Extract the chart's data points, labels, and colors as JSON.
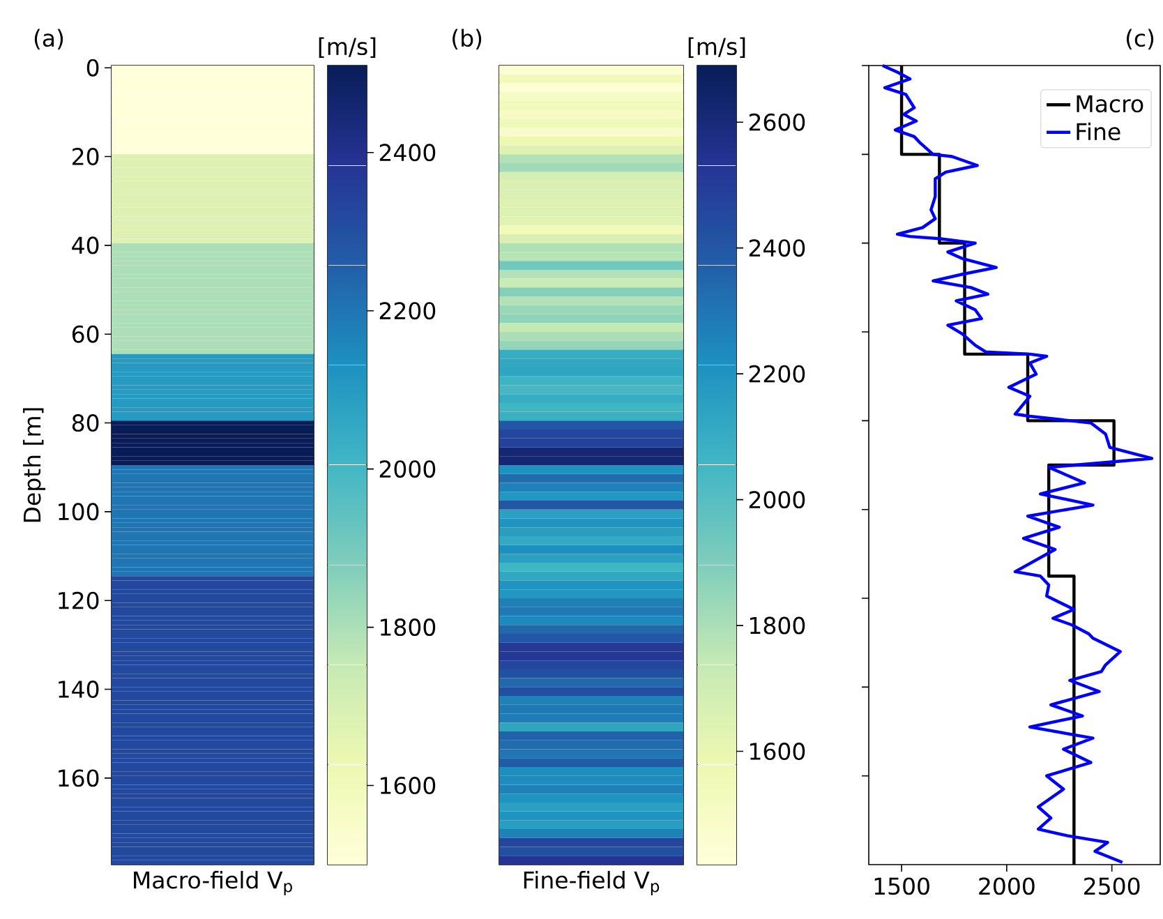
{
  "chart_data": [
    {
      "type": "heatmap",
      "title": "(a)",
      "xlabel": "Macro-field V$_{p}$",
      "ylabel": "Depth [m]",
      "clabel": "[m/s]",
      "categories": [
        null
      ],
      "y_categories": [
        "0",
        null,
        null,
        null,
        null,
        null,
        null,
        null,
        null,
        null,
        null,
        null,
        null,
        null,
        null,
        null,
        null,
        null,
        null,
        null,
        "20",
        null,
        null,
        null,
        null,
        null,
        null,
        null,
        null,
        null,
        null,
        null,
        null,
        null,
        null,
        null,
        null,
        null,
        null,
        null,
        "40",
        null,
        null,
        null,
        null,
        null,
        null,
        null,
        null,
        null,
        null,
        null,
        null,
        null,
        null,
        null,
        null,
        null,
        null,
        null,
        "60",
        null,
        null,
        null,
        null,
        null,
        null,
        null,
        null,
        null,
        null,
        null,
        null,
        null,
        null,
        null,
        null,
        null,
        null,
        null,
        "80",
        null,
        null,
        null,
        null,
        null,
        null,
        null,
        null,
        null,
        null,
        null,
        null,
        null,
        null,
        null,
        null,
        null,
        null,
        null,
        "100",
        null,
        null,
        null,
        null,
        null,
        null,
        null,
        null,
        null,
        null,
        null,
        null,
        null,
        null,
        null,
        null,
        null,
        null,
        null,
        "120",
        null,
        null,
        null,
        null,
        null,
        null,
        null,
        null,
        null,
        null,
        null,
        null,
        null,
        null,
        null,
        null,
        null,
        null,
        null,
        "140",
        null,
        null,
        null,
        null,
        null,
        null,
        null,
        null,
        null,
        null,
        null,
        null,
        null,
        null,
        null,
        null,
        null,
        null,
        null,
        "160",
        null,
        null,
        null,
        null,
        null,
        null,
        null,
        null,
        null,
        null,
        null,
        null,
        null,
        null,
        null,
        null,
        null,
        null,
        null
      ],
      "cells": [
        [
          1500
        ],
        [
          1500
        ],
        [
          1500
        ],
        [
          1500
        ],
        [
          1500
        ],
        [
          1500
        ],
        [
          1500
        ],
        [
          1500
        ],
        [
          1500
        ],
        [
          1500
        ],
        [
          1500
        ],
        [
          1500
        ],
        [
          1500
        ],
        [
          1500
        ],
        [
          1500
        ],
        [
          1500
        ],
        [
          1500
        ],
        [
          1500
        ],
        [
          1500
        ],
        [
          1500
        ],
        [
          1680
        ],
        [
          1680
        ],
        [
          1680
        ],
        [
          1680
        ],
        [
          1680
        ],
        [
          1680
        ],
        [
          1680
        ],
        [
          1680
        ],
        [
          1680
        ],
        [
          1680
        ],
        [
          1680
        ],
        [
          1680
        ],
        [
          1680
        ],
        [
          1680
        ],
        [
          1680
        ],
        [
          1680
        ],
        [
          1680
        ],
        [
          1680
        ],
        [
          1680
        ],
        [
          1680
        ],
        [
          1800
        ],
        [
          1800
        ],
        [
          1800
        ],
        [
          1800
        ],
        [
          1800
        ],
        [
          1800
        ],
        [
          1800
        ],
        [
          1800
        ],
        [
          1800
        ],
        [
          1800
        ],
        [
          1800
        ],
        [
          1800
        ],
        [
          1800
        ],
        [
          1800
        ],
        [
          1800
        ],
        [
          1800
        ],
        [
          1800
        ],
        [
          1800
        ],
        [
          1800
        ],
        [
          1800
        ],
        [
          1800
        ],
        [
          1800
        ],
        [
          1800
        ],
        [
          1800
        ],
        [
          1800
        ],
        [
          2100
        ],
        [
          2100
        ],
        [
          2100
        ],
        [
          2100
        ],
        [
          2100
        ],
        [
          2100
        ],
        [
          2100
        ],
        [
          2100
        ],
        [
          2100
        ],
        [
          2100
        ],
        [
          2100
        ],
        [
          2100
        ],
        [
          2100
        ],
        [
          2100
        ],
        [
          2100
        ],
        [
          2510
        ],
        [
          2510
        ],
        [
          2510
        ],
        [
          2510
        ],
        [
          2510
        ],
        [
          2510
        ],
        [
          2510
        ],
        [
          2510
        ],
        [
          2510
        ],
        [
          2510
        ],
        [
          2200
        ],
        [
          2200
        ],
        [
          2200
        ],
        [
          2200
        ],
        [
          2200
        ],
        [
          2200
        ],
        [
          2200
        ],
        [
          2200
        ],
        [
          2200
        ],
        [
          2200
        ],
        [
          2200
        ],
        [
          2200
        ],
        [
          2200
        ],
        [
          2200
        ],
        [
          2200
        ],
        [
          2200
        ],
        [
          2200
        ],
        [
          2200
        ],
        [
          2200
        ],
        [
          2200
        ],
        [
          2200
        ],
        [
          2200
        ],
        [
          2200
        ],
        [
          2200
        ],
        [
          2200
        ],
        [
          2320
        ],
        [
          2320
        ],
        [
          2320
        ],
        [
          2320
        ],
        [
          2320
        ],
        [
          2320
        ],
        [
          2320
        ],
        [
          2320
        ],
        [
          2320
        ],
        [
          2320
        ],
        [
          2320
        ],
        [
          2320
        ],
        [
          2320
        ],
        [
          2320
        ],
        [
          2320
        ],
        [
          2320
        ],
        [
          2320
        ],
        [
          2320
        ],
        [
          2320
        ],
        [
          2320
        ],
        [
          2320
        ],
        [
          2320
        ],
        [
          2320
        ],
        [
          2320
        ],
        [
          2320
        ],
        [
          2320
        ],
        [
          2320
        ],
        [
          2320
        ],
        [
          2320
        ],
        [
          2320
        ],
        [
          2320
        ],
        [
          2320
        ],
        [
          2320
        ],
        [
          2320
        ],
        [
          2320
        ],
        [
          2320
        ],
        [
          2320
        ],
        [
          2320
        ],
        [
          2320
        ],
        [
          2320
        ],
        [
          2320
        ],
        [
          2320
        ],
        [
          2320
        ],
        [
          2320
        ],
        [
          2320
        ],
        [
          2320
        ],
        [
          2320
        ],
        [
          2320
        ],
        [
          2320
        ],
        [
          2320
        ],
        [
          2320
        ],
        [
          2320
        ],
        [
          2320
        ],
        [
          2320
        ],
        [
          2320
        ],
        [
          2320
        ],
        [
          2320
        ],
        [
          2320
        ],
        [
          2320
        ],
        [
          2320
        ],
        [
          2320
        ],
        [
          2320
        ],
        [
          2320
        ],
        [
          2320
        ],
        [
          2320
        ]
      ],
      "clim": [
        1500,
        2510
      ],
      "cticks": [
        1600,
        1800,
        2000,
        2200,
        2400
      ]
    },
    {
      "type": "heatmap",
      "title": "(b)",
      "xlabel": "Fine-field V$_{p}$",
      "clabel": "[m/s]",
      "categories": [
        null
      ],
      "y_categories": [
        null,
        null,
        null,
        null,
        null,
        null,
        null,
        null,
        null,
        null,
        null,
        null,
        null,
        null,
        null,
        null,
        null,
        null,
        null,
        null,
        null,
        null,
        null,
        null,
        null,
        null,
        null,
        null,
        null,
        null,
        null,
        null,
        null,
        null,
        null,
        null,
        null,
        null,
        null,
        null,
        null,
        null,
        null,
        null,
        null,
        null,
        null,
        null,
        null,
        null,
        null,
        null,
        null,
        null,
        null,
        null,
        null,
        null,
        null,
        null,
        null,
        null,
        null,
        null,
        null,
        null,
        null,
        null,
        null,
        null,
        null,
        null,
        null,
        null,
        null,
        null,
        null,
        null,
        null,
        null,
        null,
        null,
        null,
        null,
        null,
        null,
        null,
        null,
        null,
        null
      ],
      "cells": [
        [
          1450
        ],
        [
          1540
        ],
        [
          1440
        ],
        [
          1510
        ],
        [
          1540
        ],
        [
          1510
        ],
        [
          1550
        ],
        [
          1480
        ],
        [
          1580
        ],
        [
          1640
        ],
        [
          1780
        ],
        [
          1820
        ],
        [
          1680
        ],
        [
          1660
        ],
        [
          1660
        ],
        [
          1650
        ],
        [
          1650
        ],
        [
          1630
        ],
        [
          1540
        ],
        [
          1660
        ],
        [
          1790
        ],
        [
          1770
        ],
        [
          1930
        ],
        [
          1780
        ],
        [
          1720
        ],
        [
          1880
        ],
        [
          1780
        ],
        [
          1840
        ],
        [
          1860
        ],
        [
          1740
        ],
        [
          1800
        ],
        [
          1850
        ],
        [
          2100
        ],
        [
          2120
        ],
        [
          2130
        ],
        [
          2070
        ],
        [
          2040
        ],
        [
          2100
        ],
        [
          2060
        ],
        [
          2080
        ],
        [
          2400
        ],
        [
          2460
        ],
        [
          2480
        ],
        [
          2620
        ],
        [
          2620
        ],
        [
          2210
        ],
        [
          2330
        ],
        [
          2260
        ],
        [
          2190
        ],
        [
          2400
        ],
        [
          2150
        ],
        [
          2200
        ],
        [
          2160
        ],
        [
          2110
        ],
        [
          2220
        ],
        [
          2150
        ],
        [
          2060
        ],
        [
          2120
        ],
        [
          2200
        ],
        [
          2190
        ],
        [
          2270
        ],
        [
          2290
        ],
        [
          2240
        ],
        [
          2340
        ],
        [
          2400
        ],
        [
          2510
        ],
        [
          2520
        ],
        [
          2460
        ],
        [
          2420
        ],
        [
          2340
        ],
        [
          2430
        ],
        [
          2260
        ],
        [
          2290
        ],
        [
          2280
        ],
        [
          2130
        ],
        [
          2360
        ],
        [
          2330
        ],
        [
          2300
        ],
        [
          2380
        ],
        [
          2220
        ],
        [
          2230
        ],
        [
          2260
        ],
        [
          2200
        ],
        [
          2150
        ],
        [
          2200
        ],
        [
          2160
        ],
        [
          2260
        ],
        [
          2460
        ],
        [
          2430
        ],
        [
          2530
        ]
      ],
      "clim": [
        1420,
        2690
      ],
      "cticks": [
        1600,
        1800,
        2000,
        2200,
        2400,
        2600
      ]
    },
    {
      "type": "line",
      "title": "(c)",
      "legend": "top right",
      "xlim": [
        1344,
        2730
      ],
      "xticks": [
        1500,
        2000,
        2500
      ],
      "ylim": [
        180,
        0
      ],
      "yticks": [
        0,
        20,
        40,
        60,
        80,
        100,
        120,
        140,
        160
      ],
      "tick_labels": "x",
      "series": [
        {
          "name": "Macro",
          "color": "#000000",
          "x": [
            1500,
            1500,
            1680,
            1680,
            1800,
            1800,
            2100,
            2100,
            2510,
            2510,
            2200,
            2200,
            2320,
            2320
          ],
          "values": [
            0,
            20,
            20,
            40,
            40,
            65,
            65,
            80,
            80,
            90,
            90,
            115,
            115,
            180
          ]
        },
        {
          "name": "Fine",
          "color": "#0000ff",
          "x": [
            1410,
            1480,
            1540,
            1420,
            1520,
            1560,
            1510,
            1570,
            1470,
            1560,
            1590,
            1650,
            1740,
            1860,
            1710,
            1660,
            1660,
            1640,
            1660,
            1600,
            1480,
            1540,
            1680,
            1850,
            1720,
            1790,
            1950,
            1790,
            1650,
            1830,
            1910,
            1760,
            1850,
            1880,
            1720,
            1790,
            1850,
            1900,
            2110,
            2190,
            2110,
            2140,
            2010,
            2110,
            2040,
            2110,
            2400,
            2470,
            2490,
            2690,
            2200,
            2370,
            2160,
            2410,
            2100,
            2250,
            2080,
            2230,
            2040,
            2160,
            2200,
            2190,
            2320,
            2220,
            2310,
            2390,
            2410,
            2540,
            2470,
            2450,
            2300,
            2440,
            2210,
            2360,
            2110,
            2410,
            2270,
            2400,
            2190,
            2270,
            2150,
            2210,
            2150,
            2290,
            2480,
            2420,
            2550
          ],
          "values": [
            0,
            1.5,
            3,
            5,
            6.5,
            9.5,
            11,
            12.5,
            14.5,
            16,
            17.5,
            20,
            20.5,
            22.5,
            24,
            25.5,
            29.5,
            32.5,
            34.5,
            36.5,
            38,
            38.5,
            39,
            40,
            42,
            43.5,
            45.5,
            47,
            48.5,
            50,
            51.5,
            53,
            55,
            57,
            58.5,
            60.5,
            63,
            64.5,
            65,
            65.5,
            67,
            69.5,
            72.5,
            74.5,
            78.5,
            79,
            80.5,
            83,
            86,
            88.5,
            90.5,
            94,
            96.5,
            99,
            101.5,
            104,
            106.5,
            109,
            114,
            115,
            117,
            119.5,
            122.5,
            124.5,
            126,
            128,
            129,
            132,
            135,
            136.5,
            138.5,
            141,
            144,
            146.5,
            149,
            151.5,
            154,
            157,
            160,
            163,
            167,
            169.5,
            172,
            173.5,
            175,
            177,
            179.5
          ]
        }
      ]
    }
  ]
}
